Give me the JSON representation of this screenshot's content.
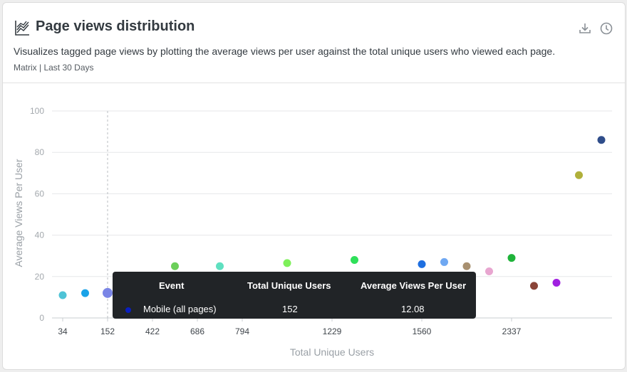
{
  "widget": {
    "title": "Page views distribution",
    "description": "Visualizes tagged page views by plotting the average views per user against the total unique users who viewed each page.",
    "meta": "Matrix | Last 30 Days",
    "icons": [
      "chart-icon",
      "download-icon",
      "clock-icon"
    ]
  },
  "tooltip": {
    "headers": [
      "Event",
      "Total Unique Users",
      "Average Views Per User"
    ],
    "row": {
      "event": "Mobile (all pages)",
      "users": "152",
      "avg": "12.08",
      "color": "#0a1fbf"
    }
  },
  "chart_data": {
    "type": "scatter",
    "xlabel": "Total Unique Users",
    "ylabel": "Average Views Per User",
    "ylim": [
      0,
      100
    ],
    "yticks": [
      0,
      20,
      40,
      60,
      80,
      100
    ],
    "x_categories": [
      "34",
      "",
      "152",
      "",
      "422",
      "",
      "686",
      "",
      "794",
      "",
      "",
      "",
      "1229",
      "",
      "",
      "",
      "1560",
      "",
      "",
      "",
      "2337"
    ],
    "x_tick_labels": [
      "34",
      "422",
      "686",
      "794",
      "1229",
      "1560",
      "2337"
    ],
    "grid": true,
    "highlight_x": "152",
    "points": [
      {
        "xi": 0,
        "y": 11,
        "color": "#4fc3d6"
      },
      {
        "xi": 1,
        "y": 12,
        "color": "#1aa3e8"
      },
      {
        "xi": 2,
        "y": 12.08,
        "color": "#7a85e6",
        "label": "Mobile (all pages)"
      },
      {
        "xi": 5,
        "y": 25,
        "color": "#6ccf5a"
      },
      {
        "xi": 7,
        "y": 25,
        "color": "#5fe0c0"
      },
      {
        "xi": 10,
        "y": 26.5,
        "color": "#7ef05a"
      },
      {
        "xi": 13,
        "y": 28,
        "color": "#2fe05a"
      },
      {
        "xi": 16,
        "y": 26,
        "color": "#1f6fe0"
      },
      {
        "xi": 17,
        "y": 27,
        "color": "#6fa8f2"
      },
      {
        "xi": 18,
        "y": 25,
        "color": "#a89070"
      },
      {
        "xi": 19,
        "y": 22.5,
        "color": "#e8a6d0"
      },
      {
        "xi": 20,
        "y": 29,
        "color": "#1fb33a"
      },
      {
        "xi": 21,
        "y": 15.5,
        "color": "#8a4438"
      },
      {
        "xi": 22,
        "y": 17,
        "color": "#a020e0"
      },
      {
        "xi": 23,
        "y": 69,
        "color": "#b0b03a"
      },
      {
        "xi": 24,
        "y": 86,
        "color": "#2f4d8a"
      }
    ]
  }
}
